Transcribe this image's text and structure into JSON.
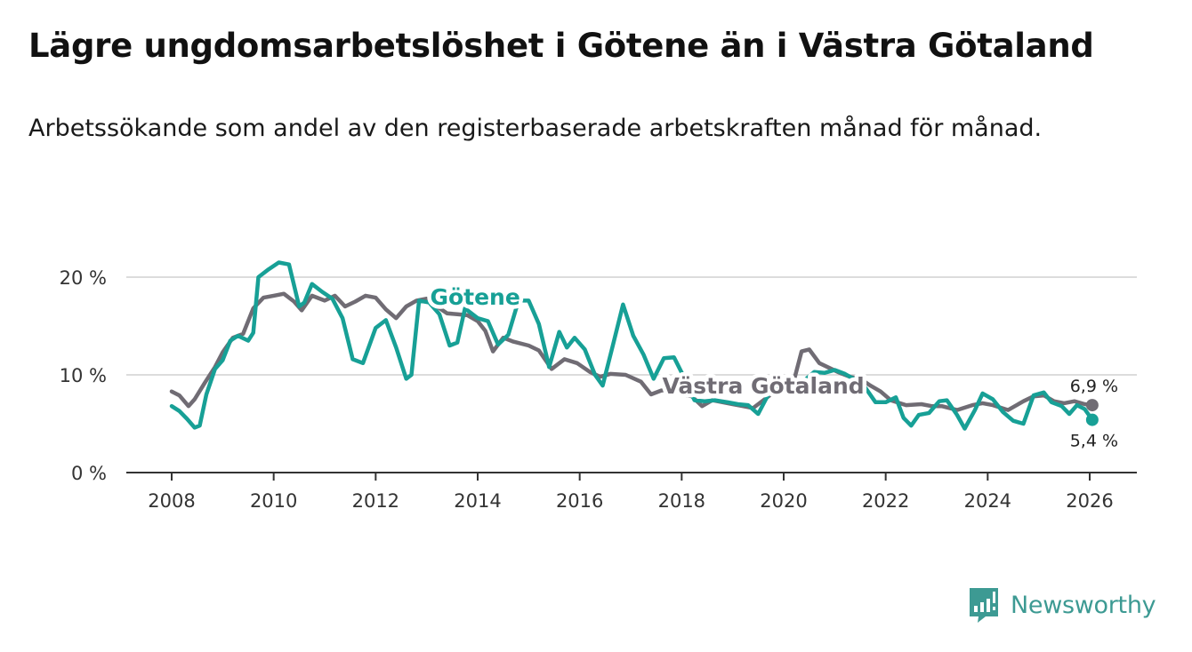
{
  "title": "Lägre ungdomsarbetslöshet i Götene än i Västra Götaland",
  "subtitle": "Arbetssökande som andel av den registerbaserade arbetskraften månad för månad.",
  "brand": {
    "name": "Newsworthy",
    "icon": "newsworthy-logo-icon",
    "color": "#3d9a93"
  },
  "chart_data": {
    "type": "line",
    "title": "Lägre ungdomsarbetslöshet i Götene än i Västra Götaland",
    "subtitle": "Arbetssökande som andel av den registerbaserade arbetskraften månad för månad.",
    "xlabel": "",
    "ylabel": "",
    "xlim": [
      2007.25,
      2026.95
    ],
    "ylim": [
      0,
      22
    ],
    "x_ticks": [
      2008,
      2010,
      2012,
      2014,
      2016,
      2018,
      2020,
      2022,
      2024,
      2026
    ],
    "x_tick_labels": [
      "2008",
      "2010",
      "2012",
      "2014",
      "2016",
      "2018",
      "2020",
      "2022",
      "2024",
      "2026"
    ],
    "y_ticks": [
      0,
      10,
      20
    ],
    "y_tick_labels": [
      "0 %",
      "10 %",
      "20 %"
    ],
    "grid": true,
    "series": [
      {
        "name": "Västra Götaland",
        "color": "#706c74",
        "end_label": "6,9 %",
        "points": [
          [
            2008.0,
            8.3
          ],
          [
            2008.15,
            7.9
          ],
          [
            2008.33,
            6.8
          ],
          [
            2008.45,
            7.5
          ],
          [
            2008.65,
            9.2
          ],
          [
            2008.85,
            10.8
          ],
          [
            2009.0,
            12.3
          ],
          [
            2009.2,
            13.8
          ],
          [
            2009.4,
            14.2
          ],
          [
            2009.6,
            16.8
          ],
          [
            2009.8,
            17.9
          ],
          [
            2010.0,
            18.1
          ],
          [
            2010.2,
            18.3
          ],
          [
            2010.4,
            17.5
          ],
          [
            2010.55,
            16.6
          ],
          [
            2010.75,
            18.1
          ],
          [
            2011.0,
            17.6
          ],
          [
            2011.2,
            18.1
          ],
          [
            2011.4,
            17.0
          ],
          [
            2011.6,
            17.5
          ],
          [
            2011.8,
            18.1
          ],
          [
            2012.0,
            17.9
          ],
          [
            2012.2,
            16.7
          ],
          [
            2012.4,
            15.8
          ],
          [
            2012.6,
            17.0
          ],
          [
            2012.8,
            17.6
          ],
          [
            2013.0,
            17.8
          ],
          [
            2013.2,
            17.0
          ],
          [
            2013.4,
            16.3
          ],
          [
            2013.6,
            16.2
          ],
          [
            2013.8,
            16.1
          ],
          [
            2014.0,
            15.5
          ],
          [
            2014.15,
            14.5
          ],
          [
            2014.3,
            12.4
          ],
          [
            2014.5,
            13.8
          ],
          [
            2014.7,
            13.4
          ],
          [
            2015.0,
            13.0
          ],
          [
            2015.2,
            12.5
          ],
          [
            2015.45,
            10.6
          ],
          [
            2015.7,
            11.6
          ],
          [
            2015.95,
            11.2
          ],
          [
            2016.2,
            10.3
          ],
          [
            2016.4,
            9.8
          ],
          [
            2016.6,
            10.1
          ],
          [
            2016.9,
            10.0
          ],
          [
            2017.2,
            9.3
          ],
          [
            2017.4,
            8.0
          ],
          [
            2017.6,
            8.4
          ],
          [
            2017.8,
            8.5
          ],
          [
            2018.0,
            8.0
          ],
          [
            2018.2,
            7.8
          ],
          [
            2018.4,
            6.8
          ],
          [
            2018.6,
            7.4
          ],
          [
            2018.8,
            7.2
          ],
          [
            2019.0,
            7.0
          ],
          [
            2019.2,
            6.8
          ],
          [
            2019.4,
            6.6
          ],
          [
            2019.6,
            7.4
          ],
          [
            2019.8,
            8.2
          ],
          [
            2020.0,
            8.6
          ],
          [
            2020.2,
            9.4
          ],
          [
            2020.35,
            12.4
          ],
          [
            2020.5,
            12.6
          ],
          [
            2020.7,
            11.2
          ],
          [
            2020.9,
            10.7
          ],
          [
            2021.1,
            10.2
          ],
          [
            2021.3,
            9.8
          ],
          [
            2021.5,
            9.6
          ],
          [
            2021.7,
            8.9
          ],
          [
            2021.9,
            8.3
          ],
          [
            2022.1,
            7.4
          ],
          [
            2022.4,
            6.9
          ],
          [
            2022.7,
            7.0
          ],
          [
            2022.9,
            6.8
          ],
          [
            2023.1,
            6.8
          ],
          [
            2023.4,
            6.4
          ],
          [
            2023.7,
            6.9
          ],
          [
            2023.9,
            7.1
          ],
          [
            2024.1,
            6.9
          ],
          [
            2024.4,
            6.4
          ],
          [
            2024.7,
            7.3
          ],
          [
            2024.9,
            7.8
          ],
          [
            2025.1,
            7.9
          ],
          [
            2025.3,
            7.3
          ],
          [
            2025.5,
            7.1
          ],
          [
            2025.7,
            7.3
          ],
          [
            2025.9,
            7.0
          ],
          [
            2026.05,
            6.9
          ]
        ]
      },
      {
        "name": "Götene",
        "color": "#17a096",
        "end_label": "5,4 %",
        "points": [
          [
            2008.0,
            6.8
          ],
          [
            2008.15,
            6.3
          ],
          [
            2008.3,
            5.5
          ],
          [
            2008.45,
            4.6
          ],
          [
            2008.55,
            4.8
          ],
          [
            2008.68,
            8.0
          ],
          [
            2008.85,
            10.6
          ],
          [
            2009.0,
            11.5
          ],
          [
            2009.15,
            13.5
          ],
          [
            2009.3,
            14.0
          ],
          [
            2009.5,
            13.5
          ],
          [
            2009.6,
            14.3
          ],
          [
            2009.7,
            20.0
          ],
          [
            2009.9,
            20.8
          ],
          [
            2010.1,
            21.5
          ],
          [
            2010.3,
            21.3
          ],
          [
            2010.5,
            17.0
          ],
          [
            2010.6,
            17.4
          ],
          [
            2010.75,
            19.3
          ],
          [
            2010.95,
            18.5
          ],
          [
            2011.15,
            17.8
          ],
          [
            2011.35,
            15.8
          ],
          [
            2011.55,
            11.6
          ],
          [
            2011.75,
            11.2
          ],
          [
            2012.0,
            14.8
          ],
          [
            2012.2,
            15.6
          ],
          [
            2012.4,
            12.8
          ],
          [
            2012.6,
            9.6
          ],
          [
            2012.7,
            10.0
          ],
          [
            2012.85,
            17.6
          ],
          [
            2013.05,
            17.4
          ],
          [
            2013.25,
            16.2
          ],
          [
            2013.45,
            13.0
          ],
          [
            2013.6,
            13.3
          ],
          [
            2013.75,
            16.8
          ],
          [
            2014.0,
            15.8
          ],
          [
            2014.2,
            15.5
          ],
          [
            2014.4,
            13.1
          ],
          [
            2014.6,
            14.1
          ],
          [
            2014.8,
            17.6
          ],
          [
            2015.0,
            17.6
          ],
          [
            2015.2,
            15.2
          ],
          [
            2015.4,
            10.8
          ],
          [
            2015.6,
            14.4
          ],
          [
            2015.75,
            12.8
          ],
          [
            2015.9,
            13.8
          ],
          [
            2016.1,
            12.6
          ],
          [
            2016.3,
            10.0
          ],
          [
            2016.45,
            8.9
          ],
          [
            2016.65,
            13.0
          ],
          [
            2016.85,
            17.2
          ],
          [
            2017.05,
            14.0
          ],
          [
            2017.25,
            12.1
          ],
          [
            2017.45,
            9.6
          ],
          [
            2017.65,
            11.7
          ],
          [
            2017.85,
            11.8
          ],
          [
            2018.05,
            9.7
          ],
          [
            2018.25,
            7.4
          ],
          [
            2018.45,
            7.3
          ],
          [
            2018.65,
            7.4
          ],
          [
            2018.9,
            7.2
          ],
          [
            2019.1,
            7.0
          ],
          [
            2019.3,
            6.9
          ],
          [
            2019.5,
            6.0
          ],
          [
            2019.7,
            8.0
          ],
          [
            2020.0,
            8.8
          ],
          [
            2020.2,
            9.1
          ],
          [
            2020.4,
            9.4
          ],
          [
            2020.6,
            10.3
          ],
          [
            2020.8,
            10.2
          ],
          [
            2021.0,
            10.5
          ],
          [
            2021.2,
            10.1
          ],
          [
            2021.4,
            9.5
          ],
          [
            2021.6,
            8.7
          ],
          [
            2021.8,
            7.2
          ],
          [
            2022.0,
            7.2
          ],
          [
            2022.2,
            7.7
          ],
          [
            2022.35,
            5.6
          ],
          [
            2022.5,
            4.8
          ],
          [
            2022.65,
            5.9
          ],
          [
            2022.85,
            6.1
          ],
          [
            2023.05,
            7.3
          ],
          [
            2023.2,
            7.4
          ],
          [
            2023.4,
            5.9
          ],
          [
            2023.55,
            4.5
          ],
          [
            2023.75,
            6.4
          ],
          [
            2023.9,
            8.1
          ],
          [
            2024.1,
            7.5
          ],
          [
            2024.3,
            6.2
          ],
          [
            2024.5,
            5.3
          ],
          [
            2024.7,
            5.0
          ],
          [
            2024.9,
            7.9
          ],
          [
            2025.1,
            8.2
          ],
          [
            2025.25,
            7.2
          ],
          [
            2025.45,
            6.8
          ],
          [
            2025.6,
            6.0
          ],
          [
            2025.75,
            6.9
          ],
          [
            2025.9,
            6.5
          ],
          [
            2026.05,
            5.4
          ]
        ]
      }
    ],
    "annotations": [
      {
        "text": "Götene",
        "x": 2013.95,
        "y": 17.2,
        "series": "Götene"
      },
      {
        "text": "Västra Götaland",
        "x": 2019.6,
        "y": 8.1,
        "series": "Västra Götaland"
      }
    ]
  }
}
